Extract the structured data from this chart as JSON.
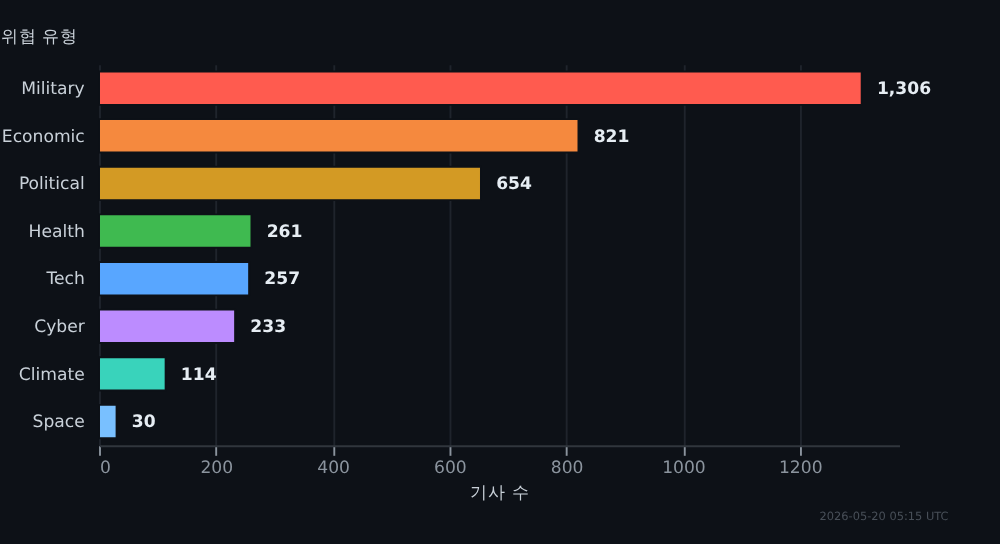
{
  "chart_data": {
    "type": "bar",
    "orientation": "horizontal",
    "title": "위협 유형",
    "xlabel": "기사 수",
    "categories": [
      "Military",
      "Economic",
      "Political",
      "Health",
      "Tech",
      "Cyber",
      "Climate",
      "Space"
    ],
    "values": [
      1306,
      821,
      654,
      261,
      257,
      233,
      114,
      30
    ],
    "colors": [
      "#ff5b4f",
      "#f5893e",
      "#d39a24",
      "#3fba50",
      "#58a6ff",
      "#bc8cff",
      "#39d3bb",
      "#79c0ff"
    ],
    "value_labels": [
      "1,306",
      "821",
      "654",
      "261",
      "257",
      "233",
      "114",
      "30"
    ],
    "xlim": [
      0,
      1370
    ],
    "xticks": [
      0,
      200,
      400,
      600,
      800,
      1000,
      1200
    ],
    "grid": "x",
    "annotations": [
      "2026-05-20 05:15 UTC"
    ]
  }
}
